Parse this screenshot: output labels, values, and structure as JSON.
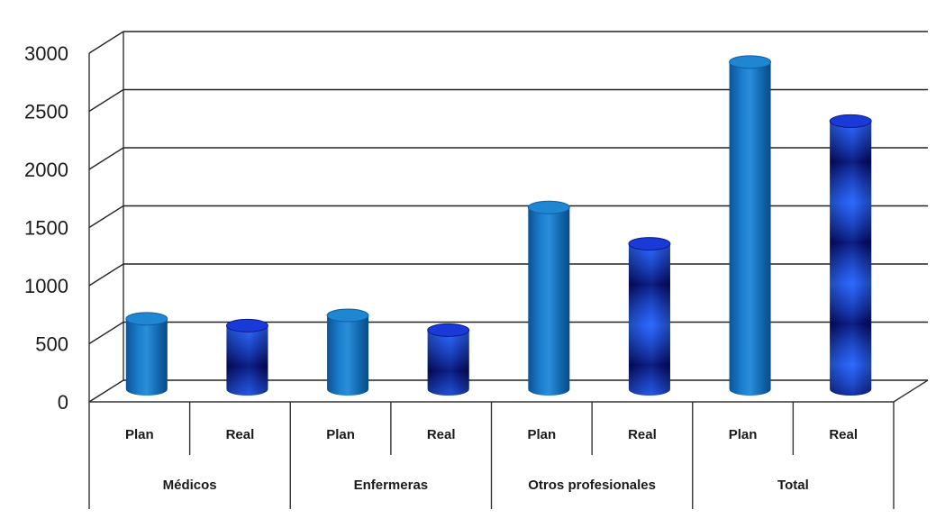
{
  "chart_data": {
    "type": "bar",
    "style": "3d-cylinder",
    "groups": [
      {
        "label": "Médicos",
        "bars": [
          {
            "label": "Plan",
            "value": 620,
            "series": "Plan"
          },
          {
            "label": "Real",
            "value": 560,
            "series": "Real"
          }
        ]
      },
      {
        "label": "Enfermeras",
        "bars": [
          {
            "label": "Plan",
            "value": 650,
            "series": "Plan"
          },
          {
            "label": "Real",
            "value": 520,
            "series": "Real"
          }
        ]
      },
      {
        "label": "Otros profesionales",
        "bars": [
          {
            "label": "Plan",
            "value": 1600,
            "series": "Plan"
          },
          {
            "label": "Real",
            "value": 1280,
            "series": "Real"
          }
        ]
      },
      {
        "label": "Total",
        "bars": [
          {
            "label": "Plan",
            "value": 2880,
            "series": "Plan"
          },
          {
            "label": "Real",
            "value": 2360,
            "series": "Real"
          }
        ]
      }
    ],
    "yticks": [
      "0",
      "500",
      "1000",
      "1500",
      "2000",
      "2500",
      "3000"
    ],
    "ylim": [
      0,
      3000
    ],
    "grid": true,
    "legend": "none",
    "colors": {
      "Plan": "#1577c4",
      "Real": "#1230c8"
    }
  }
}
